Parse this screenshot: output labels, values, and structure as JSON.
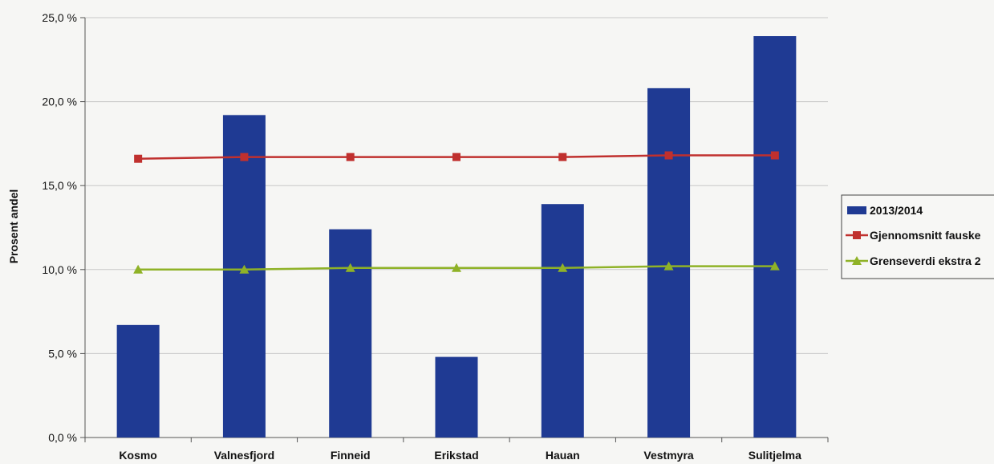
{
  "chart_data": {
    "type": "bar",
    "categories": [
      "Kosmo",
      "Valnesfjord",
      "Finneid",
      "Erikstad",
      "Hauan",
      "Vestmyra",
      "Sulitjelma"
    ],
    "series": [
      {
        "name": "2013/2014",
        "kind": "bar",
        "color": "#1f3a93",
        "values": [
          6.7,
          19.2,
          12.4,
          4.8,
          13.9,
          20.8,
          23.9
        ]
      },
      {
        "name": "Gjennomsnitt fauske",
        "kind": "line",
        "marker": "square",
        "color": "#c0302e",
        "values": [
          16.6,
          16.7,
          16.7,
          16.7,
          16.7,
          16.8,
          16.8
        ]
      },
      {
        "name": "Grenseverdi ekstra 2",
        "kind": "line",
        "marker": "triangle",
        "color": "#8fb227",
        "values": [
          10.0,
          10.0,
          10.1,
          10.1,
          10.1,
          10.2,
          10.2
        ]
      }
    ],
    "yticks": [
      "0,0 %",
      "5,0 %",
      "10,0 %",
      "15,0 %",
      "20,0 %",
      "25,0 %"
    ],
    "ylabel": "Prosent andel",
    "xlabel": "",
    "ylim": [
      0,
      25
    ],
    "grid": true,
    "legend": "right"
  }
}
